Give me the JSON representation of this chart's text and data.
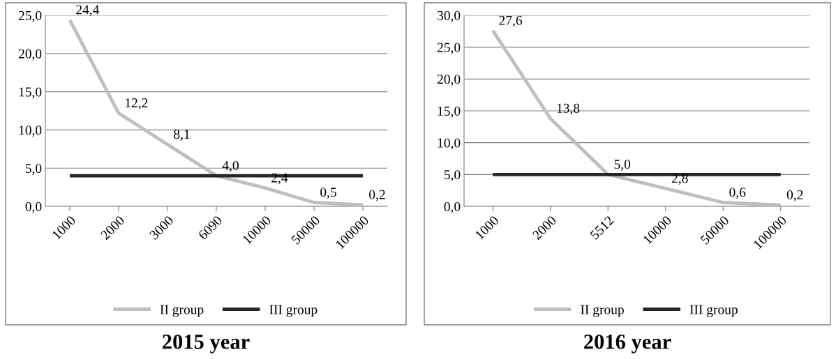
{
  "chart_data": [
    {
      "type": "line",
      "title": "2015 year",
      "categories": [
        "1000",
        "2000",
        "3000",
        "6090",
        "10000",
        "50000",
        "100000"
      ],
      "series": [
        {
          "name": "II group",
          "color": "#bfbfbf",
          "values": [
            24.4,
            12.2,
            8.1,
            4.0,
            2.4,
            0.5,
            0.2
          ],
          "value_labels": [
            "24,4",
            "12,2",
            "8,1",
            "4,0",
            "2,4",
            "0,5",
            "0,2"
          ]
        },
        {
          "name": "III group",
          "color": "#262626",
          "values": [
            4.0,
            4.0,
            4.0,
            4.0,
            4.0,
            4.0,
            4.0
          ]
        }
      ],
      "ylim": [
        0,
        25
      ],
      "yticks": [
        {
          "value": 0,
          "label": "0,0"
        },
        {
          "value": 5,
          "label": "5,0"
        },
        {
          "value": 10,
          "label": "10,0"
        },
        {
          "value": 15,
          "label": "15,0"
        },
        {
          "value": 20,
          "label": "20,0"
        },
        {
          "value": 25,
          "label": "25,0"
        }
      ],
      "grid": "y",
      "legend": "bottom",
      "marker": "none",
      "line_style": "solid"
    },
    {
      "type": "line",
      "title": "2016 year",
      "categories": [
        "1000",
        "2000",
        "5512",
        "10000",
        "50000",
        "100000"
      ],
      "series": [
        {
          "name": "II group",
          "color": "#bfbfbf",
          "values": [
            27.6,
            13.8,
            5.0,
            2.8,
            0.6,
            0.2
          ],
          "value_labels": [
            "27,6",
            "13,8",
            "5,0",
            "2,8",
            "0,6",
            "0,2"
          ]
        },
        {
          "name": "III group",
          "color": "#262626",
          "values": [
            5.0,
            5.0,
            5.0,
            5.0,
            5.0,
            5.0
          ]
        }
      ],
      "ylim": [
        0,
        30
      ],
      "yticks": [
        {
          "value": 0,
          "label": "0,0"
        },
        {
          "value": 5,
          "label": "5,0"
        },
        {
          "value": 10,
          "label": "10,0"
        },
        {
          "value": 15,
          "label": "15,0"
        },
        {
          "value": 20,
          "label": "20,0"
        },
        {
          "value": 25,
          "label": "25,0"
        },
        {
          "value": 30,
          "label": "30,0"
        }
      ],
      "grid": "y",
      "legend": "bottom",
      "marker": "none",
      "line_style": "solid"
    }
  ]
}
